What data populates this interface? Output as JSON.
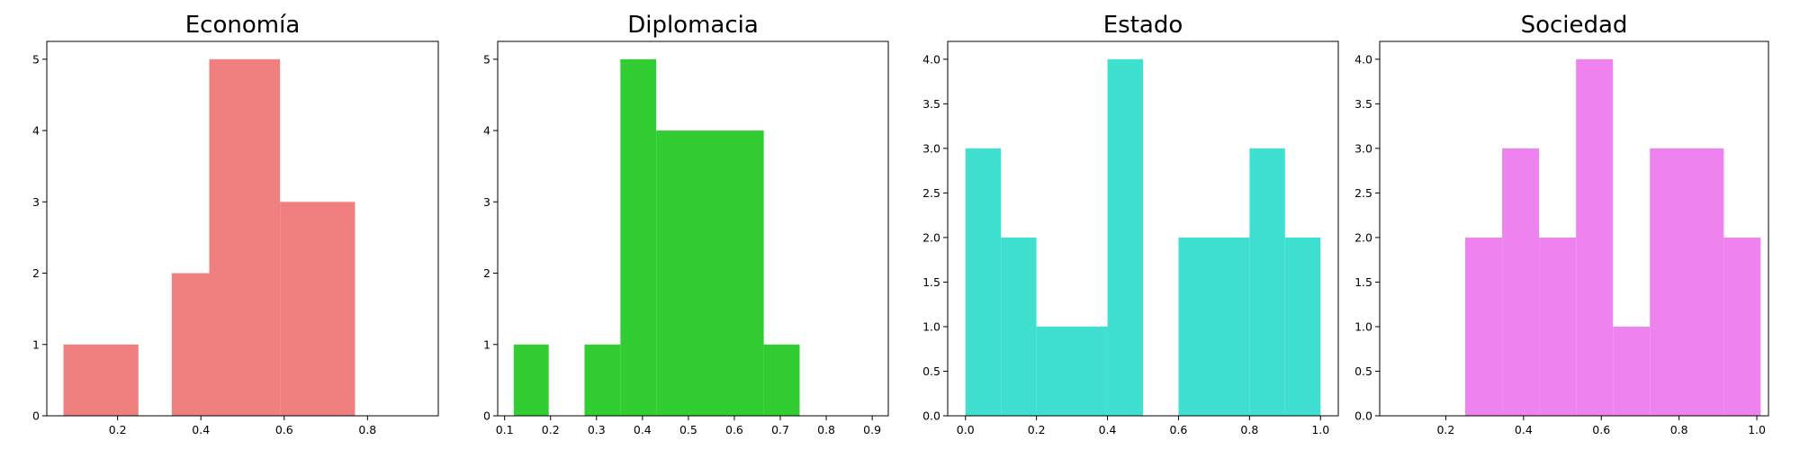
{
  "chart_data": [
    {
      "type": "histogram",
      "title": "Economía",
      "color": "#f08080",
      "xlim": [
        0.03,
        0.97
      ],
      "ylim": [
        0,
        5.25
      ],
      "xticks": [
        0.2,
        0.4,
        0.6,
        0.8
      ],
      "yticks": [
        0,
        1,
        2,
        3,
        4,
        5
      ],
      "bars": [
        {
          "x0": 0.07,
          "x1": 0.25,
          "count": 1
        },
        {
          "x0": 0.33,
          "x1": 0.42,
          "count": 2
        },
        {
          "x0": 0.42,
          "x1": 0.59,
          "count": 5
        },
        {
          "x0": 0.59,
          "x1": 0.77,
          "count": 3
        }
      ]
    },
    {
      "type": "histogram",
      "title": "Diplomacia",
      "color": "#32cd32",
      "xlim": [
        0.085,
        0.935
      ],
      "ylim": [
        0,
        5.25
      ],
      "xticks": [
        0.1,
        0.2,
        0.3,
        0.4,
        0.5,
        0.6,
        0.7,
        0.8,
        0.9
      ],
      "yticks": [
        0,
        1,
        2,
        3,
        4,
        5
      ],
      "bars": [
        {
          "x0": 0.12,
          "x1": 0.196,
          "count": 1
        },
        {
          "x0": 0.274,
          "x1": 0.352,
          "count": 1
        },
        {
          "x0": 0.352,
          "x1": 0.43,
          "count": 5
        },
        {
          "x0": 0.43,
          "x1": 0.664,
          "count": 4
        },
        {
          "x0": 0.664,
          "x1": 0.742,
          "count": 1
        }
      ]
    },
    {
      "type": "histogram",
      "title": "Estado",
      "color": "#40e0d0",
      "xlim": [
        -0.05,
        1.05
      ],
      "ylim": [
        0,
        4.2
      ],
      "xticks": [
        0.0,
        0.2,
        0.4,
        0.6,
        0.8,
        1.0
      ],
      "ytick_labels": [
        "0.0",
        "0.5",
        "1.0",
        "1.5",
        "2.0",
        "2.5",
        "3.0",
        "3.5",
        "4.0"
      ],
      "yticks": [
        0,
        0.5,
        1,
        1.5,
        2,
        2.5,
        3,
        3.5,
        4
      ],
      "bars": [
        {
          "x0": 0.0,
          "x1": 0.1,
          "count": 3
        },
        {
          "x0": 0.1,
          "x1": 0.2,
          "count": 2
        },
        {
          "x0": 0.2,
          "x1": 0.4,
          "count": 1
        },
        {
          "x0": 0.4,
          "x1": 0.5,
          "count": 4
        },
        {
          "x0": 0.6,
          "x1": 0.8,
          "count": 2
        },
        {
          "x0": 0.8,
          "x1": 0.9,
          "count": 3
        },
        {
          "x0": 0.9,
          "x1": 1.0,
          "count": 2
        }
      ]
    },
    {
      "type": "histogram",
      "title": "Sociedad",
      "color": "#ee82ee",
      "xlim": [
        0.03,
        1.03
      ],
      "ylim": [
        0,
        4.2
      ],
      "xticks": [
        0.2,
        0.4,
        0.6,
        0.8,
        1.0
      ],
      "ytick_labels": [
        "0.0",
        "0.5",
        "1.0",
        "1.5",
        "2.0",
        "2.5",
        "3.0",
        "3.5",
        "4.0"
      ],
      "yticks": [
        0,
        0.5,
        1,
        1.5,
        2,
        2.5,
        3,
        3.5,
        4
      ],
      "bars": [
        {
          "x0": 0.25,
          "x1": 0.345,
          "count": 2
        },
        {
          "x0": 0.345,
          "x1": 0.44,
          "count": 3
        },
        {
          "x0": 0.44,
          "x1": 0.535,
          "count": 2
        },
        {
          "x0": 0.535,
          "x1": 0.63,
          "count": 4
        },
        {
          "x0": 0.63,
          "x1": 0.725,
          "count": 1
        },
        {
          "x0": 0.725,
          "x1": 0.915,
          "count": 3
        },
        {
          "x0": 0.915,
          "x1": 1.01,
          "count": 2
        }
      ]
    }
  ]
}
